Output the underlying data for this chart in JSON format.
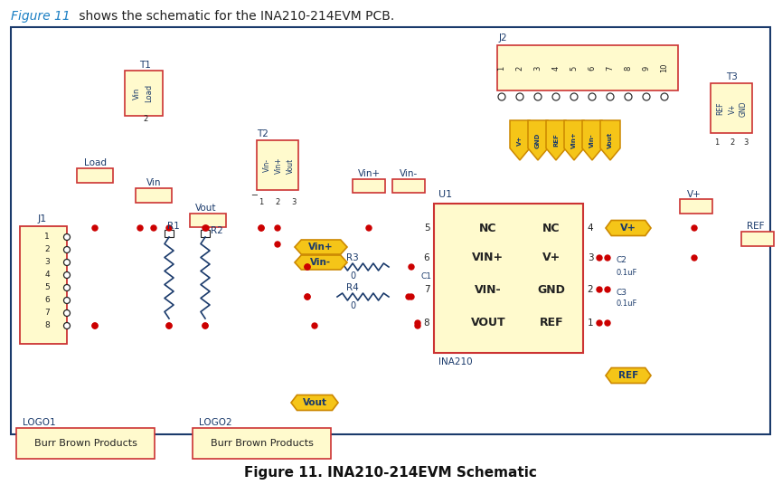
{
  "title_text": "Figure 11. INA210-214EVM Schematic",
  "header_text": "Figure 11",
  "header_rest": " shows the schematic for the INA210-214EVM PCB.",
  "bg_color": "#ffffff",
  "border_color": "#1a3a6b",
  "comp_fill": "#fffacd",
  "comp_edge": "#cc3333",
  "wire_color": "#1a3a6b",
  "dot_color": "#cc0000",
  "text_color": "#1a3a6b",
  "orange_fill": "#f5c518",
  "orange_edge": "#cc8800",
  "ic_fill": "#fffacd",
  "ic_edge": "#cc3333",
  "logo_fill": "#fffacd",
  "logo_edge": "#cc3333",
  "header_blue": "#1a7fc4",
  "gnd_color": "#cc3333"
}
